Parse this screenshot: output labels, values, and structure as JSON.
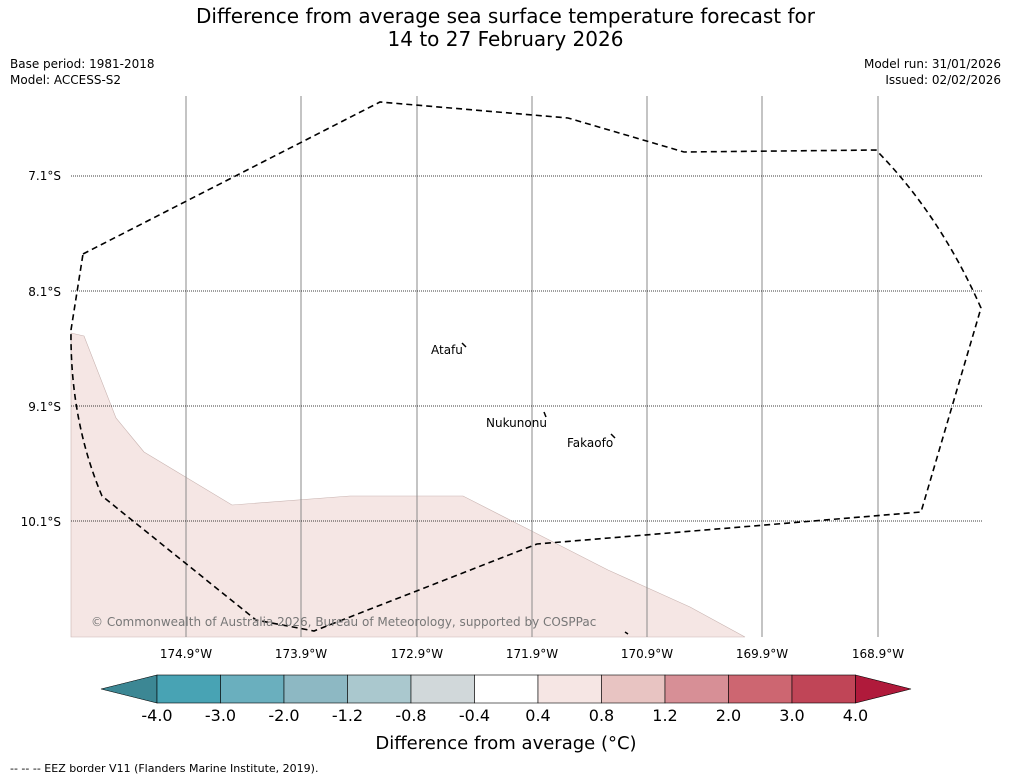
{
  "header": {
    "title_line1": "Difference from average sea surface temperature forecast for",
    "title_line2": "14 to 27 February 2026",
    "base_period": "Base period: 1981-2018",
    "model": "Model: ACCESS-S2",
    "model_run": "Model run: 31/01/2026",
    "issued": "Issued: 02/02/2026"
  },
  "map": {
    "lat_labels": [
      "7.1°S",
      "8.1°S",
      "9.1°S",
      "10.1°S"
    ],
    "lon_labels": [
      "174.9°W",
      "173.9°W",
      "172.9°W",
      "171.9°W",
      "170.9°W",
      "169.9°W",
      "168.9°W"
    ],
    "places": [
      "Atafu",
      "Nukunonu",
      "Fakaofo"
    ],
    "copyright": "© Commonwealth of Australia 2026, Bureau of Meteorology, supported by COSPPac",
    "anomaly_fill_color": "#f5e6e4"
  },
  "colorbar": {
    "ticks": [
      "-4.0",
      "-3.0",
      "-2.0",
      "-1.2",
      "-0.8",
      "-0.4",
      "0.4",
      "0.8",
      "1.2",
      "2.0",
      "3.0",
      "4.0"
    ],
    "colors": [
      "#3c8794",
      "#48a3b4",
      "#6aafbe",
      "#8db8c3",
      "#aac8ce",
      "#d1d8da",
      "#ffffff",
      "#f6e6e4",
      "#e8c4c2",
      "#d78f96",
      "#cd6671",
      "#c04557",
      "#b01a3b"
    ],
    "label": "Difference from average (°C)"
  },
  "legend": {
    "eez": "--  --  -- EEZ border V11 (Flanders Marine Institute, 2019)."
  }
}
